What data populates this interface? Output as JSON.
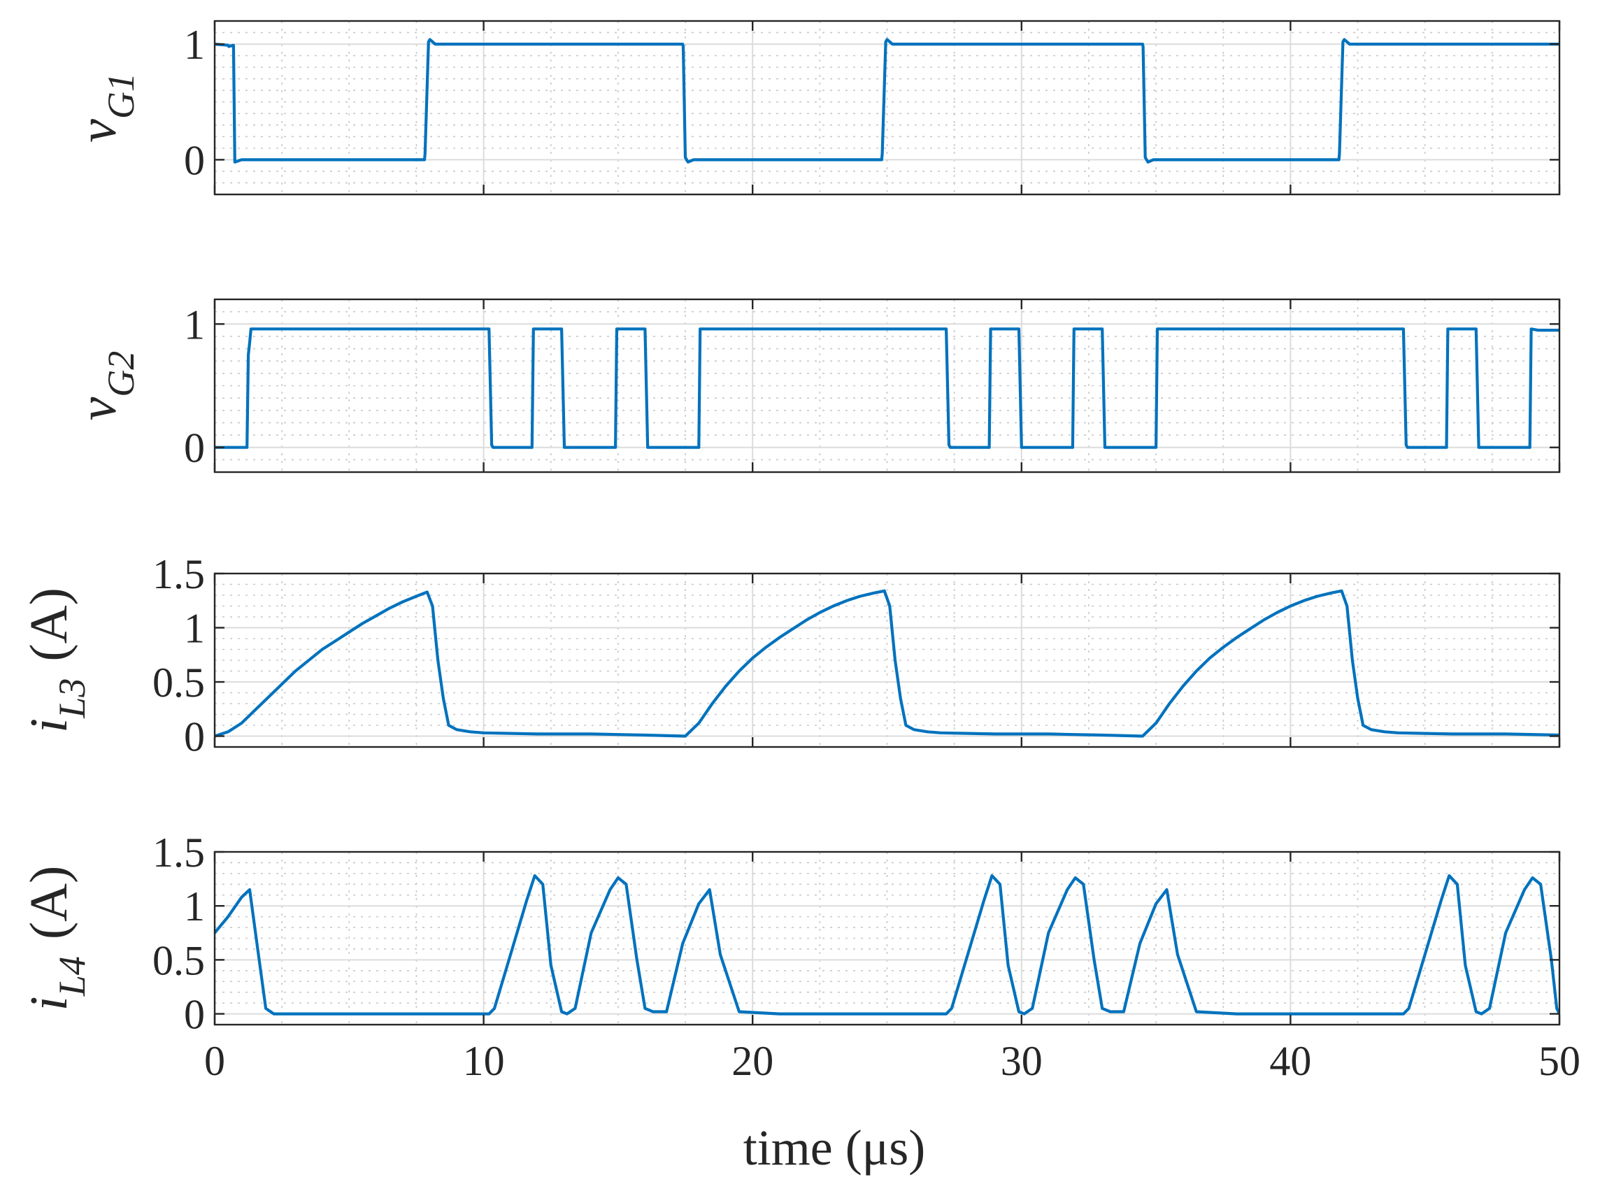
{
  "chart_data": {
    "type": "line",
    "xlabel": "time (μs)",
    "xlim": [
      0,
      50
    ],
    "xticks": [
      "0",
      "10",
      "20",
      "30",
      "40",
      "50"
    ],
    "grid": true,
    "line_color": "#0072BD",
    "subplots": [
      {
        "id": "vG1",
        "ylabel": {
          "main": "v",
          "sub": "G1",
          "unit": ""
        },
        "ylim": [
          -0.3,
          1.2
        ],
        "yticks": [
          {
            "v": 0,
            "label": "0"
          },
          {
            "v": 1,
            "label": "1"
          }
        ],
        "major_grid": [
          0,
          1
        ],
        "series": [
          {
            "x": [
              0,
              0.5,
              0.52,
              0.7,
              0.75,
              1.0,
              7.8,
              7.82,
              7.95,
              8.0,
              8.2,
              17.4,
              17.42,
              17.5,
              17.6,
              17.8,
              24.8,
              24.82,
              24.95,
              25.0,
              25.2,
              34.5,
              34.52,
              34.6,
              34.7,
              34.9,
              41.8,
              41.82,
              41.95,
              42.0,
              42.2,
              50
            ],
            "y": [
              1,
              0.99,
              0.98,
              0.99,
              -0.02,
              0.0,
              0.0,
              0.05,
              1.02,
              1.04,
              1.0,
              1.0,
              0.98,
              0.02,
              -0.02,
              0.0,
              0.0,
              0.05,
              1.02,
              1.04,
              1.0,
              1.0,
              0.98,
              0.02,
              -0.02,
              0.0,
              0.0,
              0.05,
              1.02,
              1.04,
              1.0,
              1.0
            ]
          }
        ]
      },
      {
        "id": "vG2",
        "ylabel": {
          "main": "v",
          "sub": "G2",
          "unit": ""
        },
        "ylim": [
          -0.2,
          1.2
        ],
        "yticks": [
          {
            "v": 0,
            "label": "0"
          },
          {
            "v": 1,
            "label": "1"
          }
        ],
        "major_grid": [
          0,
          1
        ],
        "series": [
          {
            "x": [
              0,
              1.2,
              1.25,
              1.3,
              1.35,
              10.2,
              10.3,
              10.35,
              11.8,
              11.85,
              12.9,
              13.0,
              14.9,
              14.95,
              16.0,
              16.1,
              18.0,
              18.05,
              18.1,
              27.2,
              27.3,
              27.35,
              28.8,
              28.85,
              29.9,
              30.0,
              31.9,
              31.95,
              33.0,
              33.1,
              35.0,
              35.05,
              35.1,
              44.2,
              44.3,
              44.35,
              45.8,
              45.85,
              46.9,
              47.0,
              48.9,
              48.95,
              49.2,
              50
            ],
            "y": [
              0,
              0,
              0.75,
              0.85,
              0.96,
              0.96,
              0.02,
              0.0,
              0.0,
              0.96,
              0.96,
              0.0,
              0.0,
              0.96,
              0.96,
              0.0,
              0.0,
              0.96,
              0.96,
              0.96,
              0.02,
              0.0,
              0.0,
              0.96,
              0.96,
              0.0,
              0.0,
              0.96,
              0.96,
              0.0,
              0.0,
              0.96,
              0.96,
              0.96,
              0.02,
              0.0,
              0.0,
              0.96,
              0.96,
              0.0,
              0.0,
              0.96,
              0.95,
              0.95
            ]
          }
        ]
      },
      {
        "id": "iL3",
        "ylabel": {
          "main": "i",
          "sub": "L3",
          "unit": "(A)"
        },
        "ylim": [
          -0.1,
          1.5
        ],
        "yticks": [
          {
            "v": 0,
            "label": "0"
          },
          {
            "v": 0.5,
            "label": "0.5"
          },
          {
            "v": 1,
            "label": "1"
          },
          {
            "v": 1.5,
            "label": "1.5"
          }
        ],
        "major_grid": [
          0,
          0.5,
          1,
          1.5
        ],
        "series": [
          {
            "x": [
              0,
              0.5,
              1,
              1.5,
              2,
              2.5,
              3,
              3.5,
              4,
              4.5,
              5,
              5.5,
              6,
              6.5,
              7,
              7.5,
              7.9,
              8.1,
              8.3,
              8.5,
              8.7,
              9.0,
              9.5,
              10,
              12,
              14,
              16,
              17.5,
              18,
              18.5,
              19,
              19.5,
              20,
              20.5,
              21,
              21.5,
              22,
              22.5,
              23,
              23.5,
              24,
              24.5,
              24.9,
              25.1,
              25.3,
              25.5,
              25.7,
              26.0,
              26.5,
              27,
              29,
              31,
              33,
              34.5,
              35,
              35.5,
              36,
              36.5,
              37,
              37.5,
              38,
              38.5,
              39,
              39.5,
              40,
              40.5,
              41,
              41.5,
              41.9,
              42.1,
              42.3,
              42.5,
              42.7,
              43.0,
              43.5,
              44,
              46,
              48,
              50
            ],
            "y": [
              0.0,
              0.04,
              0.12,
              0.24,
              0.36,
              0.48,
              0.6,
              0.7,
              0.8,
              0.88,
              0.96,
              1.04,
              1.11,
              1.18,
              1.24,
              1.29,
              1.33,
              1.2,
              0.7,
              0.35,
              0.1,
              0.06,
              0.04,
              0.03,
              0.02,
              0.02,
              0.01,
              0.0,
              0.12,
              0.3,
              0.46,
              0.6,
              0.72,
              0.82,
              0.91,
              0.99,
              1.07,
              1.14,
              1.2,
              1.25,
              1.29,
              1.32,
              1.34,
              1.2,
              0.7,
              0.35,
              0.1,
              0.06,
              0.04,
              0.03,
              0.02,
              0.02,
              0.01,
              0.0,
              0.12,
              0.3,
              0.46,
              0.6,
              0.72,
              0.82,
              0.91,
              0.99,
              1.07,
              1.14,
              1.2,
              1.25,
              1.29,
              1.32,
              1.34,
              1.2,
              0.7,
              0.35,
              0.1,
              0.06,
              0.04,
              0.03,
              0.02,
              0.02,
              0.01
            ]
          }
        ]
      },
      {
        "id": "iL4",
        "ylabel": {
          "main": "i",
          "sub": "L4",
          "unit": "(A)"
        },
        "ylim": [
          -0.1,
          1.5
        ],
        "yticks": [
          {
            "v": 0,
            "label": "0"
          },
          {
            "v": 0.5,
            "label": "0.5"
          },
          {
            "v": 1,
            "label": "1"
          },
          {
            "v": 1.5,
            "label": "1.5"
          }
        ],
        "major_grid": [
          0,
          0.5,
          1,
          1.5
        ],
        "series": [
          {
            "x": [
              0,
              0.5,
              1.0,
              1.3,
              1.6,
              1.9,
              2.2,
              4,
              7,
              10.2,
              10.4,
              11.0,
              11.6,
              11.9,
              12.2,
              12.5,
              12.9,
              13.1,
              13.4,
              14.0,
              14.7,
              15.0,
              15.3,
              15.7,
              16.0,
              16.3,
              16.8,
              17.4,
              18.0,
              18.4,
              18.8,
              19.5,
              21,
              24,
              27.2,
              27.4,
              28.0,
              28.6,
              28.9,
              29.2,
              29.5,
              29.9,
              30.1,
              30.4,
              31.0,
              31.7,
              32.0,
              32.3,
              32.7,
              33.0,
              33.3,
              33.8,
              34.4,
              35.0,
              35.4,
              35.8,
              36.5,
              38,
              41,
              44.2,
              44.4,
              45.0,
              45.6,
              45.9,
              46.2,
              46.5,
              46.9,
              47.1,
              47.4,
              48.0,
              48.7,
              49.0,
              49.3,
              49.7,
              49.9,
              50
            ],
            "y": [
              0.75,
              0.9,
              1.08,
              1.15,
              0.6,
              0.05,
              0.0,
              0.0,
              0.0,
              0.0,
              0.05,
              0.55,
              1.05,
              1.28,
              1.2,
              0.45,
              0.02,
              0.0,
              0.05,
              0.75,
              1.15,
              1.26,
              1.2,
              0.5,
              0.05,
              0.02,
              0.02,
              0.65,
              1.02,
              1.15,
              0.55,
              0.02,
              0.0,
              0.0,
              0.0,
              0.05,
              0.55,
              1.05,
              1.28,
              1.2,
              0.45,
              0.02,
              0.0,
              0.05,
              0.75,
              1.15,
              1.26,
              1.2,
              0.5,
              0.05,
              0.02,
              0.02,
              0.65,
              1.02,
              1.15,
              0.55,
              0.02,
              0.0,
              0.0,
              0.0,
              0.05,
              0.55,
              1.05,
              1.28,
              1.2,
              0.45,
              0.02,
              0.0,
              0.05,
              0.75,
              1.15,
              1.26,
              1.2,
              0.5,
              0.05,
              0.0
            ]
          }
        ]
      }
    ]
  }
}
